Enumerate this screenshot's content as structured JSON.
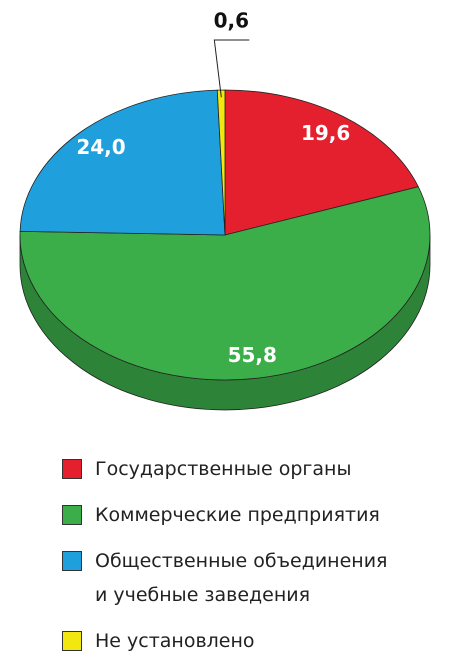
{
  "chart_data": {
    "type": "pie",
    "categories": [
      "Государственные органы",
      "Коммерческие предприятия",
      "Общественные объединения и учебные заведения",
      "Не установлено"
    ],
    "values": [
      19.6,
      55.8,
      24.0,
      0.6
    ],
    "value_labels": [
      "19,6",
      "55,8",
      "24,0",
      "0,6"
    ],
    "colors": [
      "#e5202e",
      "#3cae49",
      "#1f9fdc",
      "#f2e80f"
    ]
  }
}
